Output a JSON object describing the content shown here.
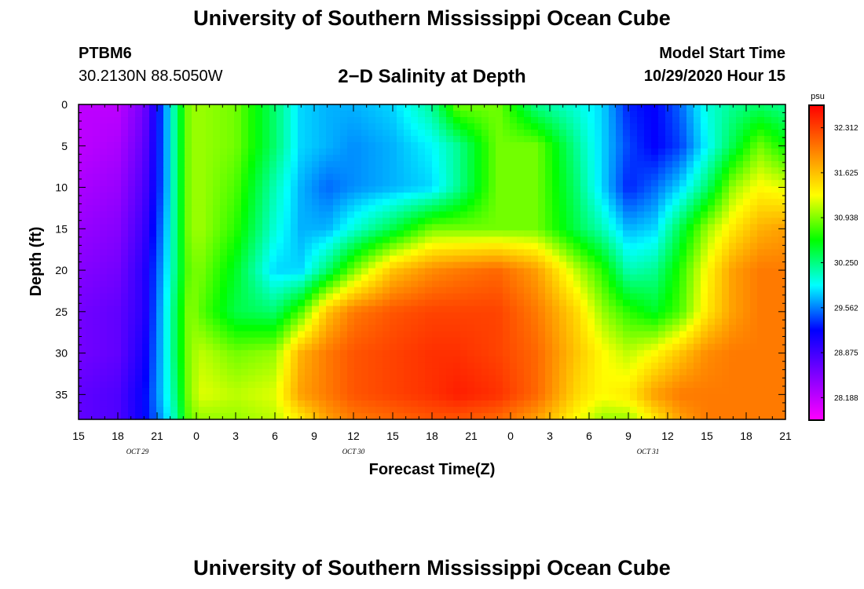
{
  "header": {
    "title": "University of Southern Mississippi Ocean Cube",
    "station": "PTBM6",
    "coords": "30.2130N 88.5050W",
    "subtitle": "2−D Salinity at Depth",
    "model_start_label": "Model Start Time",
    "model_start_value": "10/29/2020 Hour 15"
  },
  "footer": {
    "title": "University of Southern Mississippi Ocean Cube"
  },
  "chart_data": {
    "type": "heatmap",
    "title": "2−D Salinity at Depth",
    "xlabel": "Forecast Time(Z)",
    "ylabel": "Depth (ft)",
    "x_tick_labels": [
      "15",
      "18",
      "21",
      "0",
      "3",
      "6",
      "9",
      "12",
      "15",
      "18",
      "21",
      "0",
      "3",
      "6",
      "9",
      "12",
      "15",
      "18",
      "21"
    ],
    "x_range_hours": [
      0,
      54
    ],
    "day_labels": [
      {
        "text": "OCT 29",
        "hour": 4.5
      },
      {
        "text": "OCT 30",
        "hour": 21
      },
      {
        "text": "OCT 31",
        "hour": 43.5
      }
    ],
    "y_ticks": [
      0,
      5,
      10,
      15,
      20,
      25,
      30,
      35
    ],
    "ylim": [
      0,
      38
    ],
    "y_inverted": true,
    "colorbar": {
      "unit": "psu",
      "ticks": [
        28.188,
        28.875,
        29.562,
        30.25,
        30.938,
        31.625,
        32.312
      ],
      "range": [
        27.844,
        32.656
      ],
      "colors": [
        "#ff00ff",
        "#8000ff",
        "#0000ff",
        "#00ffff",
        "#00ff00",
        "#ffff00",
        "#ff8000",
        "#ff0000"
      ]
    },
    "salinity_grid": {
      "hours": [
        0,
        3,
        5,
        6.5,
        7.5,
        8.5,
        9.5,
        12,
        15,
        17,
        19,
        21,
        24,
        27,
        29,
        32,
        35,
        38,
        40,
        42,
        44,
        46,
        48,
        50,
        52,
        54
      ],
      "depths": [
        0,
        5,
        10,
        15,
        20,
        25,
        30,
        35,
        38
      ],
      "values": [
        [
          28.2,
          28.2,
          28.6,
          29.5,
          30.3,
          31.0,
          31.0,
          30.9,
          30.3,
          29.8,
          29.7,
          29.7,
          29.8,
          30.2,
          30.9,
          30.9,
          30.2,
          30.0,
          29.8,
          29.3,
          29.2,
          29.5,
          30.0,
          30.2,
          30.3,
          30.2
        ],
        [
          28.2,
          28.3,
          28.7,
          29.5,
          30.3,
          31.0,
          31.0,
          30.9,
          30.3,
          29.8,
          29.7,
          29.6,
          29.7,
          29.9,
          30.2,
          30.9,
          30.9,
          30.2,
          29.8,
          29.4,
          29.2,
          29.4,
          29.9,
          30.4,
          30.9,
          30.6
        ],
        [
          28.3,
          28.4,
          28.8,
          29.5,
          30.3,
          31.0,
          31.0,
          30.8,
          30.1,
          29.7,
          29.5,
          29.6,
          29.7,
          29.8,
          30.2,
          30.9,
          30.9,
          30.3,
          29.8,
          29.3,
          29.5,
          29.8,
          30.3,
          31.0,
          31.3,
          31.2
        ],
        [
          28.4,
          28.5,
          28.9,
          29.6,
          30.3,
          31.0,
          31.0,
          30.7,
          30.0,
          29.7,
          29.7,
          30.0,
          30.4,
          30.9,
          30.9,
          30.9,
          30.9,
          30.4,
          30.1,
          29.7,
          29.8,
          30.4,
          31.0,
          31.4,
          31.7,
          31.8
        ],
        [
          28.5,
          28.6,
          29.0,
          29.7,
          30.3,
          30.9,
          30.9,
          30.5,
          29.8,
          29.8,
          30.3,
          30.9,
          31.6,
          31.9,
          32.0,
          32.1,
          31.8,
          31.1,
          30.7,
          30.1,
          30.2,
          30.7,
          31.3,
          31.8,
          32.0,
          32.0
        ],
        [
          28.6,
          28.7,
          29.0,
          29.8,
          30.4,
          31.0,
          30.8,
          30.4,
          30.3,
          30.8,
          31.6,
          32.0,
          32.2,
          32.3,
          32.3,
          32.3,
          32.0,
          31.5,
          31.0,
          30.7,
          30.5,
          30.8,
          31.4,
          31.8,
          32.0,
          32.0
        ],
        [
          28.6,
          28.7,
          29.1,
          29.8,
          30.4,
          31.0,
          31.1,
          30.9,
          31.0,
          31.7,
          32.0,
          32.2,
          32.3,
          32.4,
          32.4,
          32.3,
          32.1,
          31.6,
          31.3,
          31.1,
          31.3,
          31.6,
          31.9,
          32.0,
          32.0,
          32.0
        ],
        [
          28.7,
          28.8,
          29.2,
          29.8,
          30.3,
          31.0,
          31.2,
          31.1,
          31.2,
          31.8,
          32.0,
          32.2,
          32.3,
          32.4,
          32.5,
          32.4,
          32.1,
          31.5,
          31.3,
          31.4,
          31.8,
          32.0,
          32.0,
          32.0,
          32.0,
          32.0
        ],
        [
          28.7,
          28.8,
          29.2,
          29.7,
          30.2,
          30.9,
          31.0,
          31.0,
          31.1,
          31.4,
          31.8,
          32.0,
          32.1,
          32.2,
          32.2,
          32.1,
          31.8,
          31.3,
          31.0,
          31.0,
          31.4,
          31.8,
          32.0,
          32.0,
          32.0,
          32.0
        ]
      ]
    }
  }
}
